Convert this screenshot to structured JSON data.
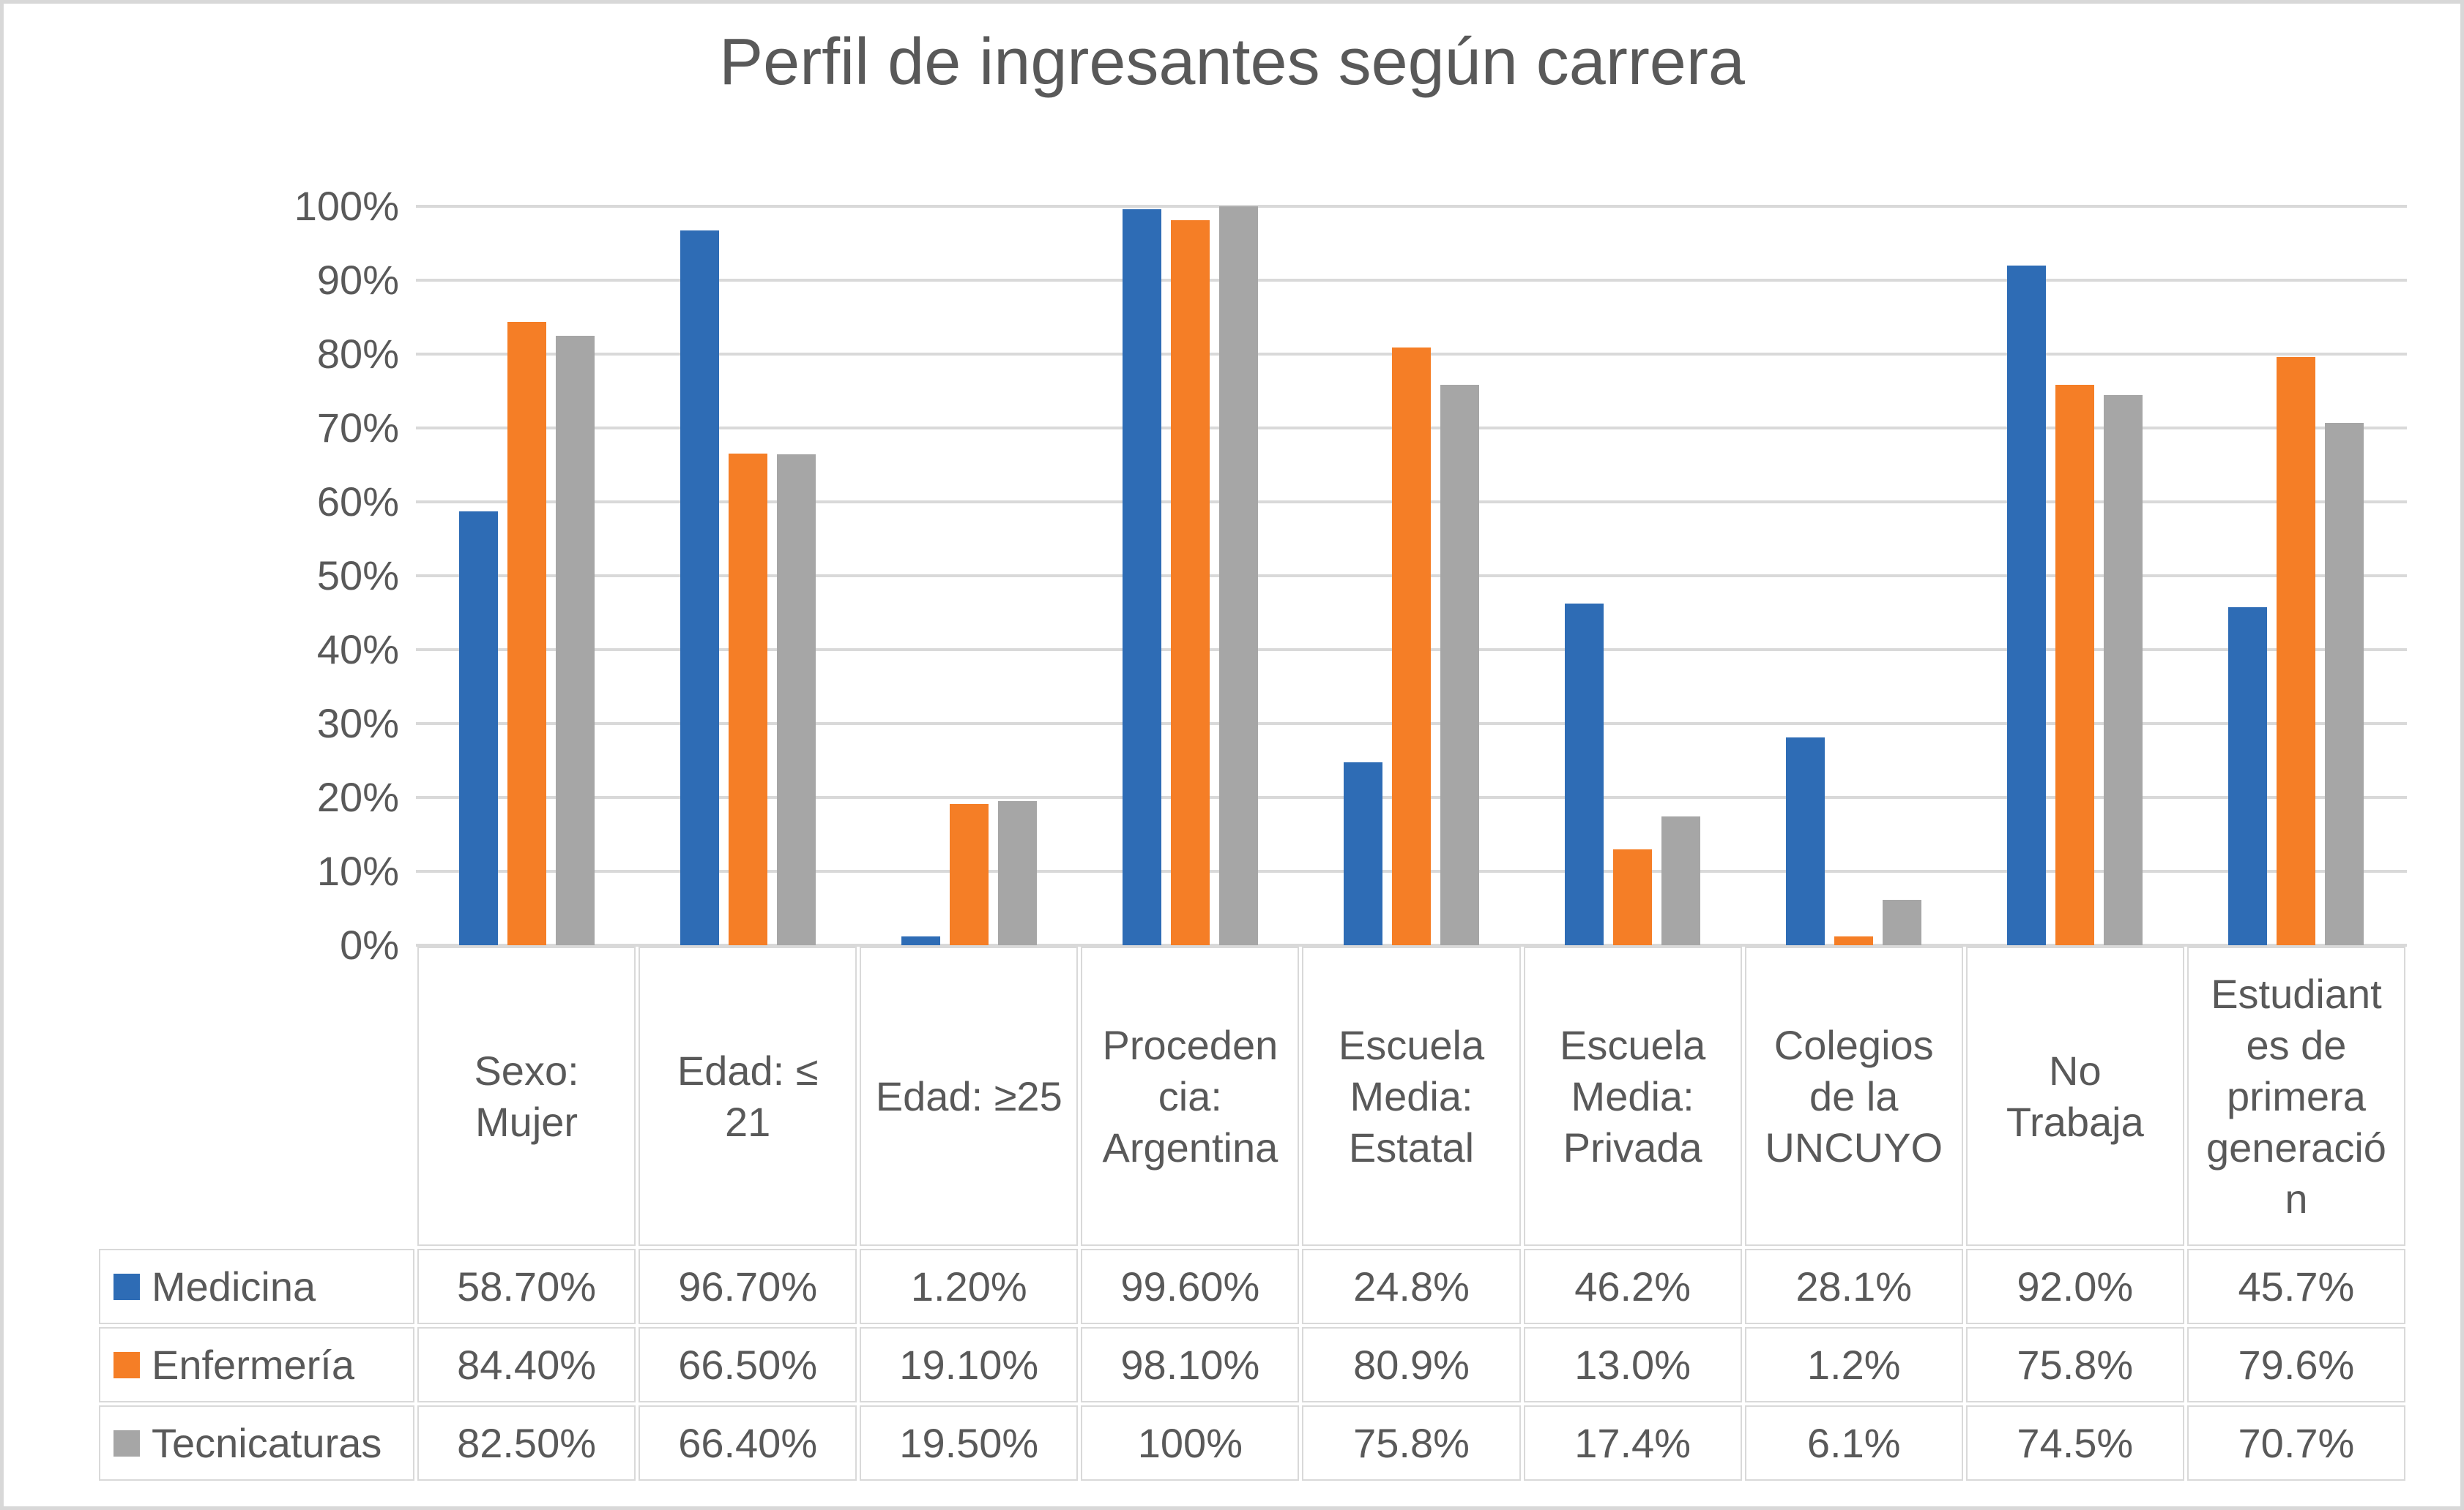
{
  "title": "Perfil de ingresantes según carrera",
  "colors": {
    "medicina": "#2E6CB5",
    "enfermeria": "#F57E26",
    "tecnicaturas": "#A6A6A6",
    "gridline": "#D9D9D9",
    "text": "#595959",
    "table_border": "#D9D9D9"
  },
  "y_axis": {
    "tick_labels": [
      "100%",
      "90%",
      "80%",
      "70%",
      "60%",
      "50%",
      "40%",
      "30%",
      "20%",
      "10%",
      "0%"
    ]
  },
  "chart_data": {
    "type": "bar",
    "title": "Perfil de ingresantes según carrera",
    "categories": [
      "Sexo: Mujer",
      "Edad:  ≤ 21",
      "Edad: ≥25",
      "Procedencia: Argentina",
      "Escuela Media: Estatal",
      "Escuela Media: Privada",
      "Colegios de la UNCUYO",
      "No Trabaja",
      "Estudiantes de primera generación"
    ],
    "category_display_lines": [
      [
        "Sexo:",
        "Mujer"
      ],
      [
        "Edad:  ≤",
        "21"
      ],
      [
        "Edad: ≥25"
      ],
      [
        "Proceden",
        "cia:",
        "Argentina"
      ],
      [
        "Escuela",
        "Media:",
        "Estatal"
      ],
      [
        "Escuela",
        "Media:",
        "Privada"
      ],
      [
        "Colegios",
        "de la",
        "UNCUYO"
      ],
      [
        "No",
        "Trabaja"
      ],
      [
        "Estudiant",
        "es de",
        "primera",
        "generació",
        "n"
      ]
    ],
    "series": [
      {
        "name": "Medicina",
        "color": "#2E6CB5",
        "values": [
          58.7,
          96.7,
          1.2,
          99.6,
          24.8,
          46.2,
          28.1,
          92.0,
          45.7
        ],
        "display": [
          "58.70%",
          "96.70%",
          "1.20%",
          "99.60%",
          "24.8%",
          "46.2%",
          "28.1%",
          "92.0%",
          "45.7%"
        ]
      },
      {
        "name": "Enfermería",
        "color": "#F57E26",
        "values": [
          84.4,
          66.5,
          19.1,
          98.1,
          80.9,
          13.0,
          1.2,
          75.8,
          79.6
        ],
        "display": [
          "84.40%",
          "66.50%",
          "19.10%",
          "98.10%",
          "80.9%",
          "13.0%",
          "1.2%",
          "75.8%",
          "79.6%"
        ]
      },
      {
        "name": "Tecnicaturas",
        "color": "#A6A6A6",
        "values": [
          82.5,
          66.4,
          19.5,
          100,
          75.8,
          17.4,
          6.1,
          74.5,
          70.7
        ],
        "display": [
          "82.50%",
          "66.40%",
          "19.50%",
          "100%",
          "75.8%",
          "17.4%",
          "6.1%",
          "74.5%",
          "70.7%"
        ]
      }
    ],
    "xlabel": "",
    "ylabel": "",
    "ylim": [
      0,
      100
    ],
    "y_tick_step": 10,
    "grid": "horizontal",
    "legend_position": "table-left"
  }
}
